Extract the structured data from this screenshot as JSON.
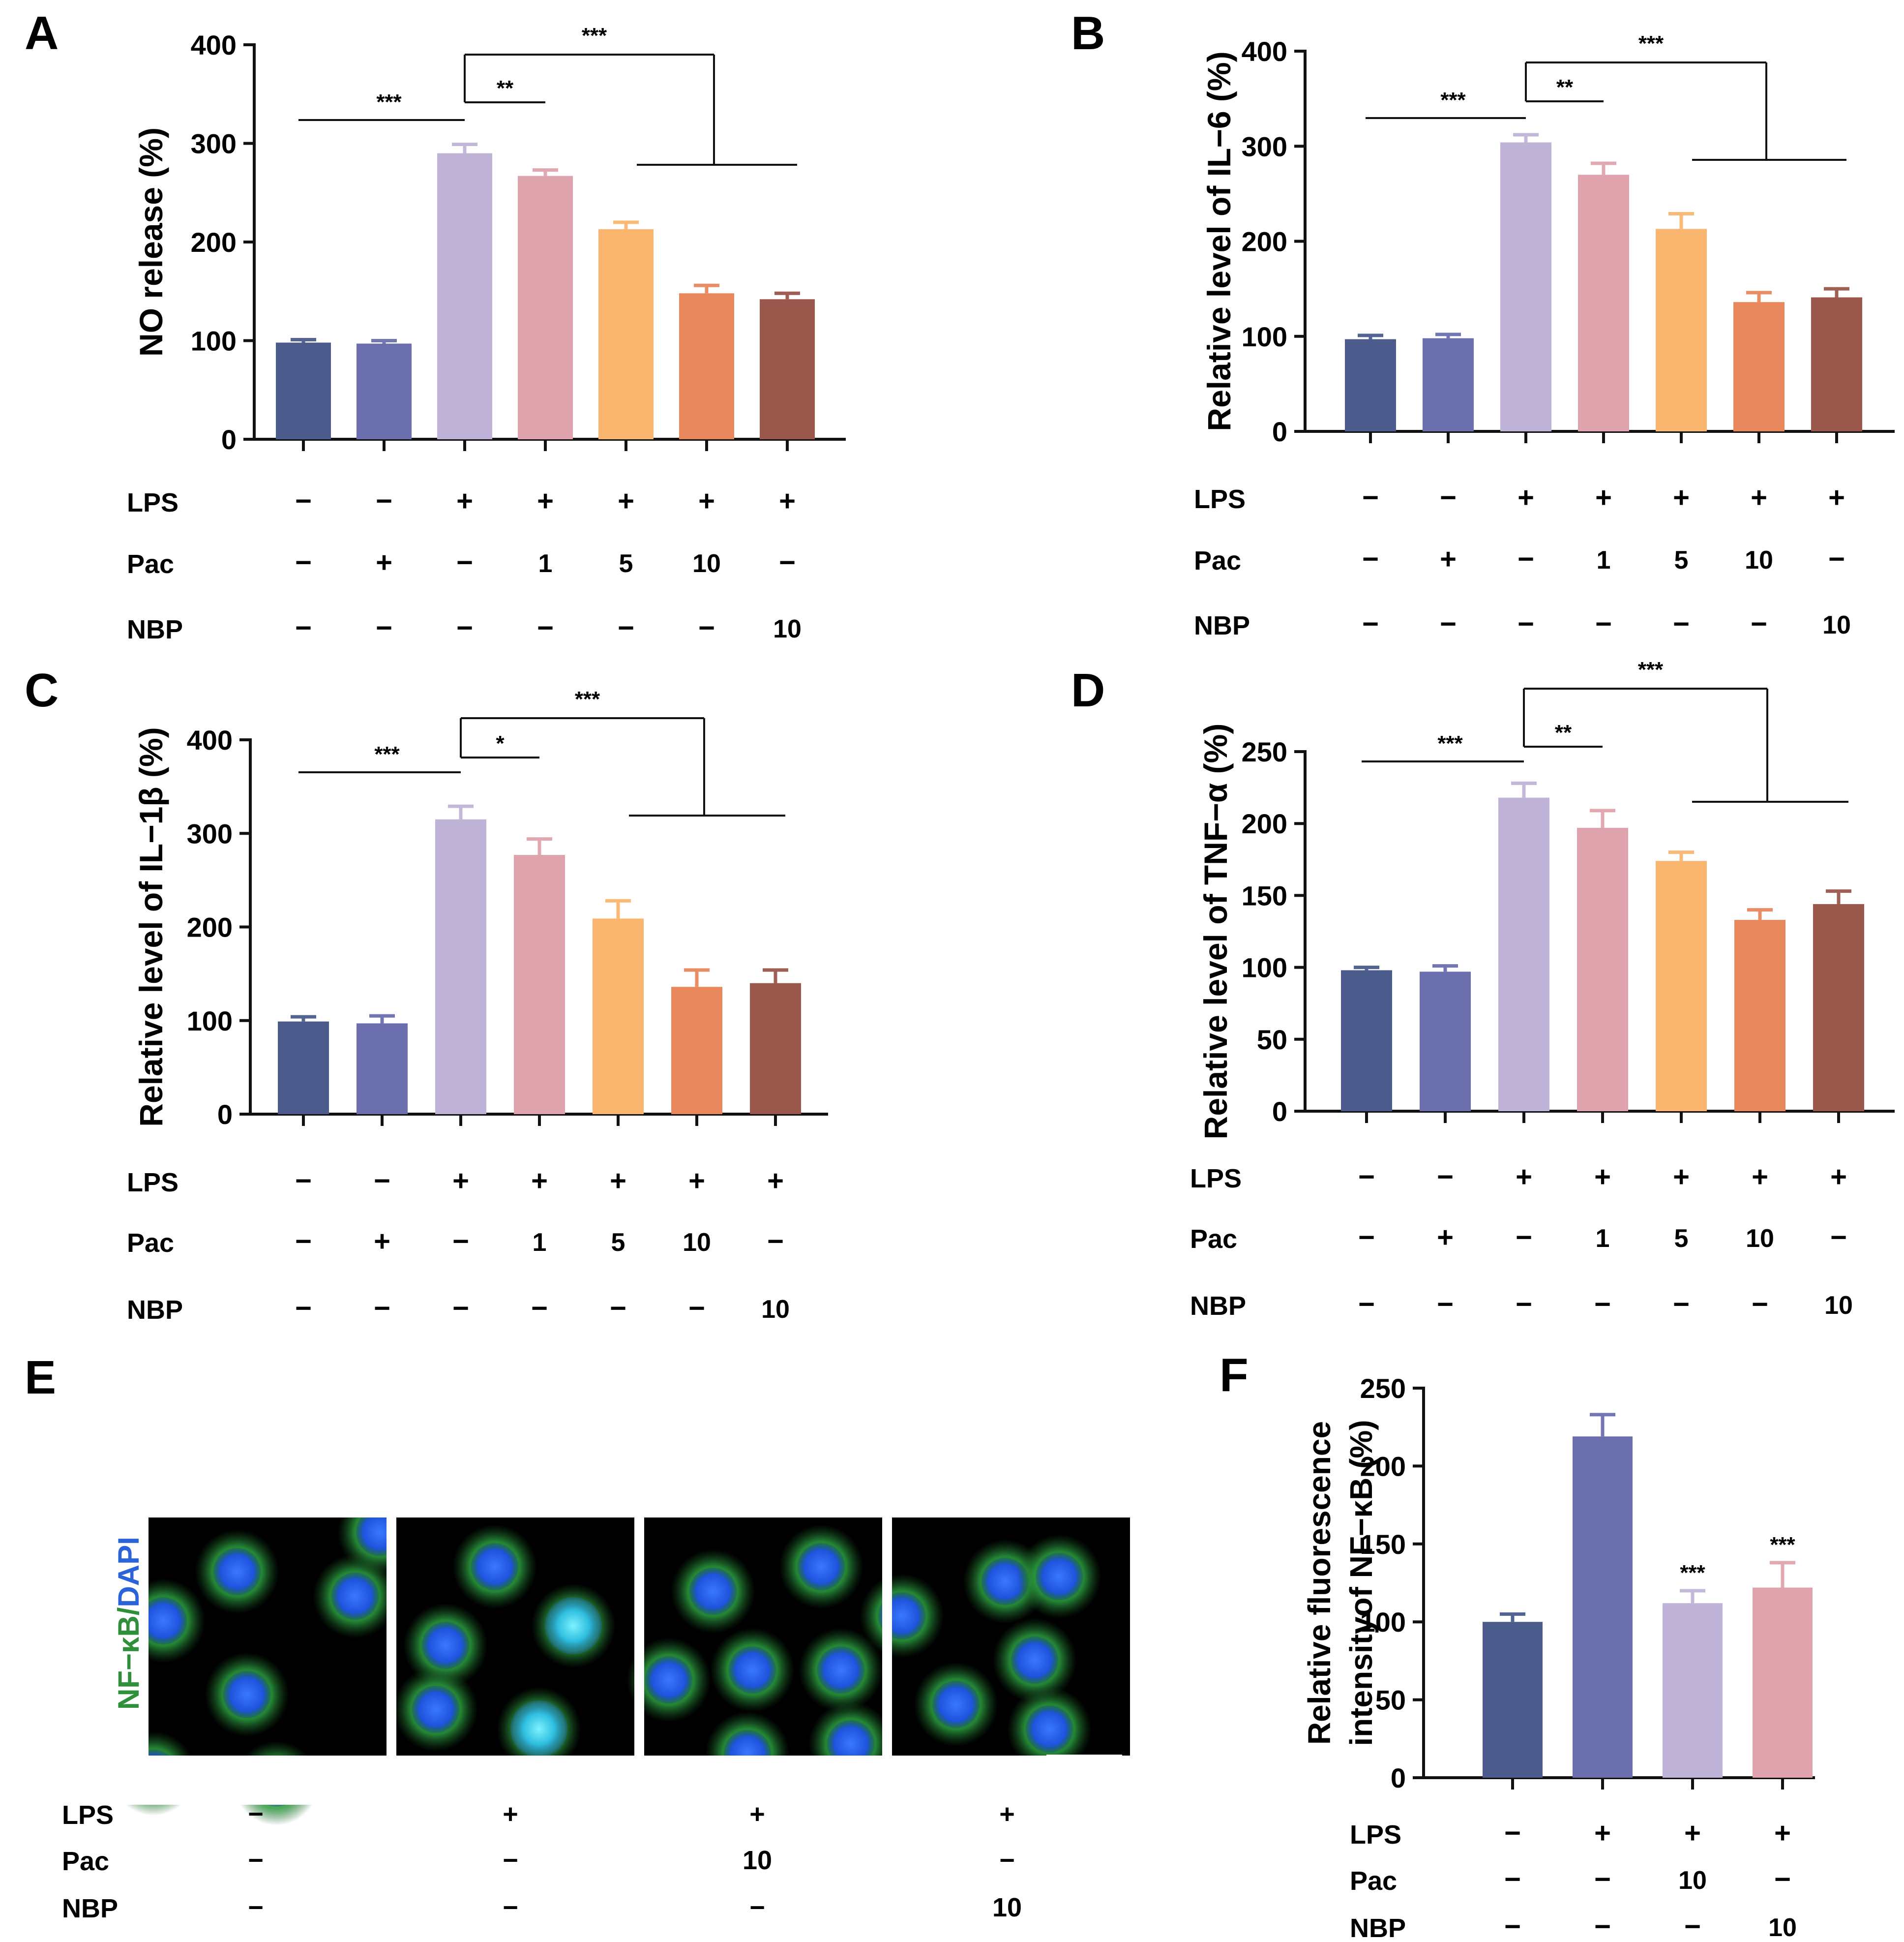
{
  "colors": {
    "bars": [
      "#4a5b8c",
      "#6b6fae",
      "#c0b3d8",
      "#dea3ad",
      "#fab56f",
      "#e8875c",
      "#9a574c"
    ],
    "dapi": "#1e50e6",
    "nfkb": "#2fa84a"
  },
  "panels": [
    {
      "letter": "A",
      "ylabel": "NO release (%)",
      "rows": [
        {
          "label": "LPS",
          "vals": [
            "−",
            "−",
            "+",
            "+",
            "+",
            "+",
            "+"
          ]
        },
        {
          "label": "Pac",
          "vals": [
            "−",
            "+",
            "−",
            "1",
            "5",
            "10",
            "−"
          ]
        },
        {
          "label": "NBP",
          "vals": [
            "−",
            "−",
            "−",
            "−",
            "−",
            "−",
            "10"
          ]
        }
      ],
      "sig": {
        "ctrl": "***",
        "pair": "**",
        "group": "***"
      }
    },
    {
      "letter": "B",
      "ylabel": "Relative level of IL−6 (%)",
      "rows": [
        {
          "label": "LPS",
          "vals": [
            "−",
            "−",
            "+",
            "+",
            "+",
            "+",
            "+"
          ]
        },
        {
          "label": "Pac",
          "vals": [
            "−",
            "+",
            "−",
            "1",
            "5",
            "10",
            "−"
          ]
        },
        {
          "label": "NBP",
          "vals": [
            "−",
            "−",
            "−",
            "−",
            "−",
            "−",
            "10"
          ]
        }
      ],
      "sig": {
        "ctrl": "***",
        "pair": "**",
        "group": "***"
      }
    },
    {
      "letter": "C",
      "ylabel": "Relative level of IL−1β (%)",
      "rows": [
        {
          "label": "LPS",
          "vals": [
            "−",
            "−",
            "+",
            "+",
            "+",
            "+",
            "+"
          ]
        },
        {
          "label": "Pac",
          "vals": [
            "−",
            "+",
            "−",
            "1",
            "5",
            "10",
            "−"
          ]
        },
        {
          "label": "NBP",
          "vals": [
            "−",
            "−",
            "−",
            "−",
            "−",
            "−",
            "10"
          ]
        }
      ],
      "sig": {
        "ctrl": "***",
        "pair": "*",
        "group": "***"
      }
    },
    {
      "letter": "D",
      "ylabel": "Relative level of TNF−α (%)",
      "rows": [
        {
          "label": "LPS",
          "vals": [
            "−",
            "−",
            "+",
            "+",
            "+",
            "+",
            "+"
          ]
        },
        {
          "label": "Pac",
          "vals": [
            "−",
            "+",
            "−",
            "1",
            "5",
            "10",
            "−"
          ]
        },
        {
          "label": "NBP",
          "vals": [
            "−",
            "−",
            "−",
            "−",
            "−",
            "−",
            "10"
          ]
        }
      ],
      "sig": {
        "ctrl": "***",
        "pair": "**",
        "group": "***"
      }
    },
    {
      "letter": "F",
      "ylabel_lines": [
        "Relative fluorescence",
        "intensityof NF−κB (%)"
      ],
      "rows": [
        {
          "label": "LPS",
          "vals": [
            "−",
            "+",
            "+",
            "+"
          ]
        },
        {
          "label": "Pac",
          "vals": [
            "−",
            "−",
            "10",
            "−"
          ]
        },
        {
          "label": "NBP",
          "vals": [
            "−",
            "−",
            "−",
            "10"
          ]
        }
      ],
      "sig": {
        "bars": [
          "",
          "",
          "***",
          "***"
        ]
      }
    }
  ],
  "panel_e": {
    "letter": "E",
    "stain_label": "NF−κB",
    "stain_sep": "/",
    "dapi_label": "DAPI",
    "rows": [
      {
        "label": "LPS",
        "vals": [
          "−",
          "+",
          "+",
          "+"
        ]
      },
      {
        "label": "Pac",
        "vals": [
          "−",
          "−",
          "10",
          "−"
        ]
      },
      {
        "label": "NBP",
        "vals": [
          "−",
          "−",
          "−",
          "10"
        ]
      }
    ]
  },
  "chart_data": [
    {
      "type": "bar",
      "panel": "A",
      "title": "",
      "xlabel": "",
      "ylabel": "NO release (%)",
      "ylim": [
        0,
        400
      ],
      "yticks": [
        0,
        100,
        200,
        300,
        400
      ],
      "values": [
        98,
        97,
        290,
        267,
        213,
        148,
        142
      ],
      "errors": [
        3,
        3,
        9,
        6,
        7,
        8,
        6
      ]
    },
    {
      "type": "bar",
      "panel": "B",
      "title": "",
      "xlabel": "",
      "ylabel": "Relative level of IL−6 (%)",
      "ylim": [
        0,
        400
      ],
      "yticks": [
        0,
        100,
        200,
        300,
        400
      ],
      "values": [
        97,
        98,
        304,
        270,
        213,
        136,
        141
      ],
      "errors": [
        4,
        4,
        8,
        12,
        16,
        10,
        9
      ]
    },
    {
      "type": "bar",
      "panel": "C",
      "title": "",
      "xlabel": "",
      "ylabel": "Relative level of IL−1β (%)",
      "ylim": [
        0,
        400
      ],
      "yticks": [
        0,
        100,
        200,
        300,
        400
      ],
      "values": [
        99,
        97,
        315,
        277,
        209,
        136,
        140
      ],
      "errors": [
        5,
        8,
        14,
        17,
        19,
        18,
        14
      ]
    },
    {
      "type": "bar",
      "panel": "D",
      "title": "",
      "xlabel": "",
      "ylabel": "Relative level of TNF−α (%)",
      "ylim": [
        0,
        250
      ],
      "yticks": [
        0,
        50,
        100,
        150,
        200,
        250
      ],
      "values": [
        98,
        97,
        218,
        197,
        174,
        133,
        144
      ],
      "errors": [
        2,
        4,
        10,
        12,
        6,
        7,
        9
      ]
    },
    {
      "type": "bar",
      "panel": "F",
      "title": "",
      "xlabel": "",
      "ylabel": "Relative fluorescence intensityof NF−κB (%)",
      "ylim": [
        0,
        250
      ],
      "yticks": [
        0,
        50,
        100,
        150,
        200,
        250
      ],
      "values": [
        100,
        219,
        112,
        122
      ],
      "errors": [
        5,
        14,
        8,
        16
      ]
    }
  ]
}
